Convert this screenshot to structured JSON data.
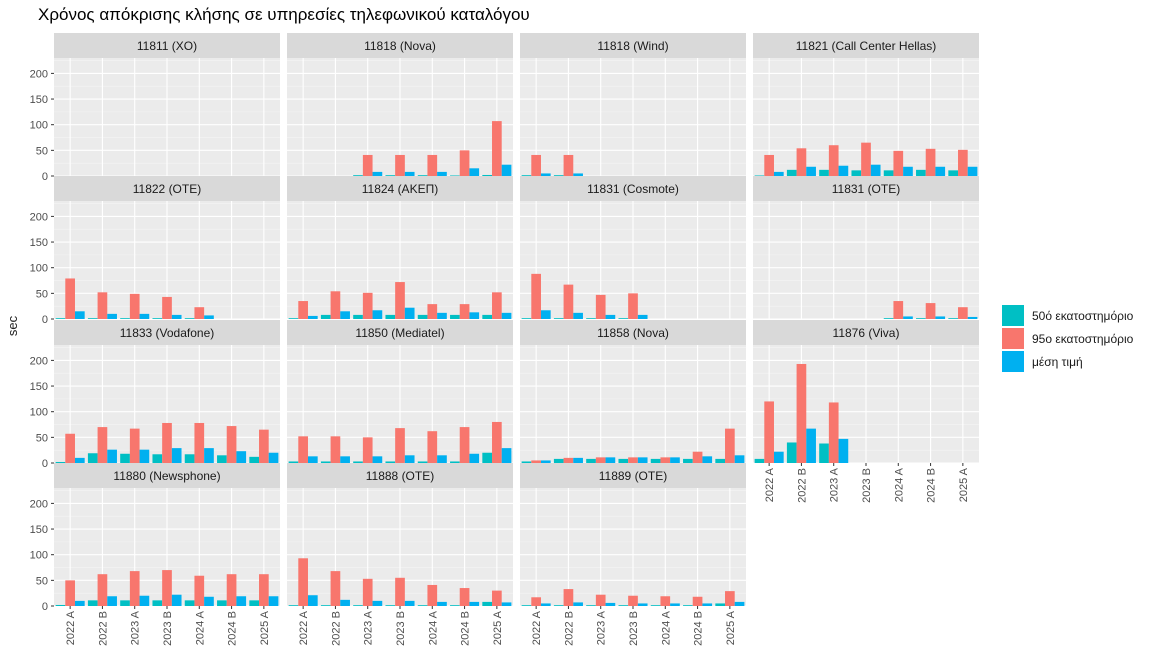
{
  "title": "Χρόνος απόκρισης κλήσης σε υπηρεσίες τηλεφωνικού καταλόγου",
  "colors": {
    "p50": "#00BFC4",
    "p95": "#F8766D",
    "mean": "#00B0F0"
  },
  "chart_data": {
    "type": "bar",
    "title": "Χρόνος απόκρισης κλήσης σε υπηρεσίες τηλεφωνικού καταλόγου",
    "xlabel": "",
    "ylabel": "sec",
    "ylim": [
      0,
      230
    ],
    "yticks": [
      0,
      50,
      100,
      150,
      200
    ],
    "grid": true,
    "legend_position": "right",
    "categories": [
      "2022 A",
      "2022 B",
      "2023 A",
      "2023 B",
      "2024 A",
      "2024 B",
      "2025 A"
    ],
    "series_names": [
      "50ό εκατοστημόριο",
      "95ο εκατοστημόριο",
      "μέση τιμή"
    ],
    "panels": [
      {
        "name": "11811 (XO)",
        "p50": [
          null,
          null,
          null,
          null,
          null,
          null,
          null
        ],
        "p95": [
          null,
          null,
          null,
          null,
          null,
          null,
          null
        ],
        "mean": [
          null,
          null,
          null,
          null,
          null,
          null,
          null
        ]
      },
      {
        "name": "11818 (Nova)",
        "p50": [
          null,
          null,
          0,
          0,
          0,
          1,
          2
        ],
        "p95": [
          null,
          null,
          41,
          41,
          41,
          50,
          107
        ],
        "mean": [
          null,
          null,
          8,
          8,
          8,
          15,
          22
        ]
      },
      {
        "name": "11818 (Wind)",
        "p50": [
          0,
          0,
          null,
          null,
          null,
          null,
          null
        ],
        "p95": [
          41,
          41,
          null,
          null,
          null,
          null,
          null
        ],
        "mean": [
          5,
          5,
          null,
          null,
          null,
          null,
          null
        ]
      },
      {
        "name": "11821 (Call Center Hellas)",
        "p50": [
          1,
          12,
          12,
          11,
          11,
          12,
          11
        ],
        "p95": [
          41,
          54,
          60,
          65,
          49,
          53,
          51
        ],
        "mean": [
          8,
          18,
          20,
          22,
          18,
          18,
          18
        ]
      },
      {
        "name": "11822 (ΟΤΕ)",
        "p50": [
          0,
          0,
          0,
          0,
          0,
          null,
          null
        ],
        "p95": [
          79,
          52,
          49,
          43,
          23,
          null,
          null
        ],
        "mean": [
          15,
          10,
          10,
          8,
          7,
          null,
          null
        ]
      },
      {
        "name": "11824 (ΑΚΕΠ)",
        "p50": [
          0,
          8,
          8,
          8,
          8,
          8,
          8
        ],
        "p95": [
          35,
          54,
          51,
          72,
          29,
          29,
          52
        ],
        "mean": [
          6,
          15,
          17,
          22,
          12,
          13,
          12
        ]
      },
      {
        "name": "11831 (Cosmote)",
        "p50": [
          0,
          0,
          0,
          0,
          null,
          null,
          null
        ],
        "p95": [
          88,
          67,
          47,
          50,
          null,
          null,
          null
        ],
        "mean": [
          17,
          12,
          8,
          8,
          null,
          null,
          null
        ]
      },
      {
        "name": "11831 (ΟΤΕ)",
        "p50": [
          null,
          null,
          null,
          null,
          0,
          0,
          0
        ],
        "p95": [
          null,
          null,
          null,
          null,
          35,
          31,
          23
        ],
        "mean": [
          null,
          null,
          null,
          null,
          5,
          5,
          4
        ]
      },
      {
        "name": "11833 (Vodafone)",
        "p50": [
          2,
          19,
          18,
          17,
          17,
          15,
          12
        ],
        "p95": [
          57,
          70,
          67,
          78,
          78,
          72,
          65
        ],
        "mean": [
          10,
          26,
          26,
          29,
          29,
          23,
          20
        ]
      },
      {
        "name": "11850 (Mediatel)",
        "p50": [
          3,
          3,
          3,
          3,
          3,
          3,
          20
        ],
        "p95": [
          52,
          52,
          50,
          68,
          62,
          70,
          80
        ],
        "mean": [
          13,
          13,
          13,
          15,
          15,
          18,
          29
        ]
      },
      {
        "name": "11858 (Nova)",
        "p50": [
          3,
          8,
          8,
          8,
          8,
          8,
          8
        ],
        "p95": [
          5,
          10,
          11,
          11,
          11,
          22,
          67
        ],
        "mean": [
          5,
          10,
          11,
          11,
          11,
          13,
          15
        ]
      },
      {
        "name": "11876 (Viva)",
        "p50": [
          8,
          40,
          38,
          null,
          null,
          null,
          null
        ],
        "p95": [
          120,
          193,
          118,
          null,
          null,
          null,
          null
        ],
        "mean": [
          22,
          67,
          47,
          null,
          null,
          null,
          null
        ]
      },
      {
        "name": "11880 (Newsphone)",
        "p50": [
          2,
          11,
          11,
          11,
          11,
          11,
          11
        ],
        "p95": [
          50,
          62,
          68,
          70,
          59,
          62,
          62
        ],
        "mean": [
          10,
          19,
          20,
          22,
          18,
          19,
          19
        ]
      },
      {
        "name": "11888 (ΟΤΕ)",
        "p50": [
          0,
          0,
          0,
          0,
          0,
          0,
          8
        ],
        "p95": [
          93,
          68,
          53,
          55,
          41,
          35,
          30
        ],
        "mean": [
          21,
          12,
          10,
          10,
          8,
          8,
          7
        ]
      },
      {
        "name": "11889 (ΟΤΕ)",
        "p50": [
          0,
          0,
          0,
          0,
          0,
          0,
          5
        ],
        "p95": [
          17,
          33,
          22,
          20,
          19,
          18,
          29
        ],
        "mean": [
          5,
          7,
          6,
          5,
          5,
          5,
          8
        ]
      }
    ]
  }
}
